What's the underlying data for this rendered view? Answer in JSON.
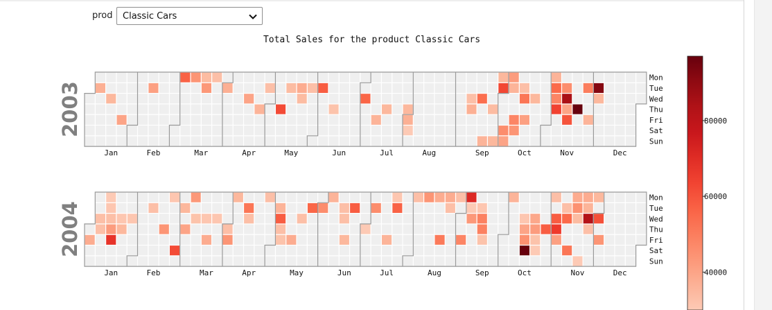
{
  "selector": {
    "label": "prod",
    "value": "Classic Cars"
  },
  "chart_data": {
    "type": "heatmap",
    "title": "Total Sales for the product Classic Cars",
    "weekday_labels": [
      "Mon",
      "Tue",
      "Wed",
      "Thu",
      "Fri",
      "Sat",
      "Sun"
    ],
    "month_labels": [
      "Jan",
      "Feb",
      "Mar",
      "Apr",
      "May",
      "Jun",
      "Jul",
      "Aug",
      "Sep",
      "Oct",
      "Nov",
      "Dec"
    ],
    "colorbar": {
      "colormap": "Reds",
      "range": [
        30000,
        97000
      ],
      "ticks": [
        40000,
        60000,
        80000
      ]
    },
    "colors": {
      "empty_cell": "#efefef",
      "month_border": "#999999",
      "year_label": "#808080"
    },
    "years": [
      {
        "year": "2003",
        "sales": [
          [
            "2003-01-07",
            37000
          ],
          [
            "2003-01-15",
            35000
          ],
          [
            "2003-01-24",
            40000
          ],
          [
            "2003-02-11",
            41000
          ],
          [
            "2003-03-03",
            57000
          ],
          [
            "2003-03-10",
            44000
          ],
          [
            "2003-03-17",
            34000
          ],
          [
            "2003-03-18",
            43000
          ],
          [
            "2003-03-24",
            33000
          ],
          [
            "2003-04-01",
            37000
          ],
          [
            "2003-04-16",
            40000
          ],
          [
            "2003-04-24",
            36000
          ],
          [
            "2003-04-29",
            33000
          ],
          [
            "2003-05-08",
            62000
          ],
          [
            "2003-05-13",
            34000
          ],
          [
            "2003-05-20",
            38000
          ],
          [
            "2003-05-21",
            34000
          ],
          [
            "2003-05-27",
            33000
          ],
          [
            "2003-06-03",
            58000
          ],
          [
            "2003-06-12",
            32000
          ],
          [
            "2003-07-02",
            56000
          ],
          [
            "2003-07-11",
            36000
          ],
          [
            "2003-07-17",
            35000
          ],
          [
            "2003-07-31",
            35000
          ],
          [
            "2003-08-01",
            37000
          ],
          [
            "2003-08-02",
            30000
          ],
          [
            "2003-09-10",
            33000
          ],
          [
            "2003-09-11",
            37000
          ],
          [
            "2003-09-17",
            54000
          ],
          [
            "2003-09-21",
            36000
          ],
          [
            "2003-09-25",
            34000
          ],
          [
            "2003-09-28",
            35000
          ],
          [
            "2003-09-29",
            35000
          ],
          [
            "2003-09-30",
            63000
          ],
          [
            "2003-10-04",
            46000
          ],
          [
            "2003-10-05",
            40000
          ],
          [
            "2003-10-06",
            42000
          ],
          [
            "2003-10-07",
            36000
          ],
          [
            "2003-10-10",
            48000
          ],
          [
            "2003-10-11",
            44000
          ],
          [
            "2003-10-14",
            33000
          ],
          [
            "2003-10-15",
            52000
          ],
          [
            "2003-10-17",
            41000
          ],
          [
            "2003-10-22",
            35000
          ],
          [
            "2003-11-03",
            36000
          ],
          [
            "2003-11-04",
            55000
          ],
          [
            "2003-11-05",
            48000
          ],
          [
            "2003-11-06",
            64000
          ],
          [
            "2003-11-11",
            46000
          ],
          [
            "2003-11-12",
            85000
          ],
          [
            "2003-11-13",
            40000
          ],
          [
            "2003-11-14",
            60000
          ],
          [
            "2003-11-20",
            97000
          ],
          [
            "2003-11-25",
            50000
          ],
          [
            "2003-11-28",
            36000
          ],
          [
            "2003-12-02",
            92000
          ],
          [
            "2003-12-03",
            35000
          ]
        ]
      },
      {
        "year": "2004",
        "sales": [
          [
            "2004-01-02",
            38000
          ],
          [
            "2004-01-07",
            33000
          ],
          [
            "2004-01-08",
            33000
          ],
          [
            "2004-01-12",
            30000
          ],
          [
            "2004-01-13",
            31000
          ],
          [
            "2004-01-14",
            33000
          ],
          [
            "2004-01-15",
            42000
          ],
          [
            "2004-01-16",
            68000
          ],
          [
            "2004-01-21",
            31000
          ],
          [
            "2004-01-22",
            35000
          ],
          [
            "2004-01-28",
            31000
          ],
          [
            "2004-02-10",
            33000
          ],
          [
            "2004-02-19",
            44000
          ],
          [
            "2004-02-23",
            31000
          ],
          [
            "2004-02-28",
            62000
          ],
          [
            "2004-03-02",
            35000
          ],
          [
            "2004-03-04",
            40000
          ],
          [
            "2004-03-08",
            43000
          ],
          [
            "2004-03-10",
            32000
          ],
          [
            "2004-03-17",
            31000
          ],
          [
            "2004-03-19",
            38000
          ],
          [
            "2004-03-24",
            31000
          ],
          [
            "2004-04-01",
            33000
          ],
          [
            "2004-04-02",
            44000
          ],
          [
            "2004-04-05",
            35000
          ],
          [
            "2004-04-13",
            52000
          ],
          [
            "2004-04-14",
            33000
          ],
          [
            "2004-04-26",
            33000
          ],
          [
            "2004-05-04",
            36000
          ],
          [
            "2004-05-05",
            58000
          ],
          [
            "2004-05-06",
            33000
          ],
          [
            "2004-05-07",
            32000
          ],
          [
            "2004-05-14",
            38000
          ],
          [
            "2004-05-19",
            33000
          ],
          [
            "2004-05-25",
            56000
          ],
          [
            "2004-06-01",
            46000
          ],
          [
            "2004-06-07",
            36000
          ],
          [
            "2004-06-15",
            33000
          ],
          [
            "2004-06-16",
            33000
          ],
          [
            "2004-06-18",
            35000
          ],
          [
            "2004-06-22",
            58000
          ],
          [
            "2004-07-01",
            30000
          ],
          [
            "2004-07-06",
            46000
          ],
          [
            "2004-07-16",
            36000
          ],
          [
            "2004-07-19",
            31000
          ],
          [
            "2004-07-20",
            57000
          ],
          [
            "2004-08-02",
            33000
          ],
          [
            "2004-08-09",
            44000
          ],
          [
            "2004-08-16",
            38000
          ],
          [
            "2004-08-20",
            51000
          ],
          [
            "2004-08-23",
            38000
          ],
          [
            "2004-08-24",
            33000
          ],
          [
            "2004-08-30",
            33000
          ],
          [
            "2004-09-03",
            48000
          ],
          [
            "2004-09-06",
            71000
          ],
          [
            "2004-09-07",
            30000
          ],
          [
            "2004-09-08",
            43000
          ],
          [
            "2004-09-14",
            31000
          ],
          [
            "2004-09-15",
            49000
          ],
          [
            "2004-09-16",
            49000
          ],
          [
            "2004-09-17",
            32000
          ],
          [
            "2004-10-04",
            36000
          ],
          [
            "2004-10-13",
            31000
          ],
          [
            "2004-10-14",
            40000
          ],
          [
            "2004-10-15",
            45000
          ],
          [
            "2004-10-16",
            97000
          ],
          [
            "2004-10-20",
            39000
          ],
          [
            "2004-10-21",
            42000
          ],
          [
            "2004-10-22",
            32000
          ],
          [
            "2004-10-23",
            30000
          ],
          [
            "2004-10-28",
            58000
          ],
          [
            "2004-11-01",
            33000
          ],
          [
            "2004-11-03",
            58000
          ],
          [
            "2004-11-04",
            66000
          ],
          [
            "2004-11-05",
            41000
          ],
          [
            "2004-11-09",
            33000
          ],
          [
            "2004-11-10",
            55000
          ],
          [
            "2004-11-13",
            52000
          ],
          [
            "2004-11-15",
            38000
          ],
          [
            "2004-11-16",
            45000
          ],
          [
            "2004-11-17",
            34000
          ],
          [
            "2004-11-21",
            30000
          ],
          [
            "2004-11-22",
            38000
          ],
          [
            "2004-11-23",
            36000
          ],
          [
            "2004-11-24",
            82000
          ],
          [
            "2004-11-25",
            33000
          ],
          [
            "2004-11-29",
            35000
          ],
          [
            "2004-12-01",
            61000
          ],
          [
            "2004-12-03",
            44000
          ]
        ]
      }
    ]
  }
}
